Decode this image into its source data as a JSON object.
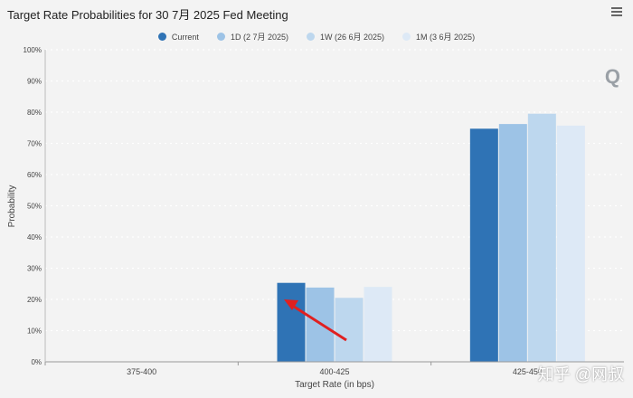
{
  "chart_data": {
    "type": "bar",
    "title": "Target Rate Probabilities for 30 7月 2025 Fed Meeting",
    "xlabel": "Target Rate (in bps)",
    "ylabel": "Probability",
    "categories": [
      "375-400",
      "400-425",
      "425-450"
    ],
    "ylim": [
      0,
      100
    ],
    "yticks": [
      "0%",
      "10%",
      "20%",
      "30%",
      "40%",
      "50%",
      "60%",
      "70%",
      "80%",
      "90%",
      "100%"
    ],
    "legend_position": "top-center",
    "grid": true,
    "series": [
      {
        "name": "Current",
        "color": "#2f73b5",
        "values": [
          0,
          25.3,
          74.7
        ]
      },
      {
        "name": "1D (2 7月 2025)",
        "color": "#9dc3e6",
        "values": [
          0,
          23.8,
          76.2
        ]
      },
      {
        "name": "1W (26 6月 2025)",
        "color": "#bdd7ee",
        "values": [
          0,
          20.5,
          79.5
        ]
      },
      {
        "name": "1M (3 6月 2025)",
        "color": "#dde9f6",
        "values": [
          0,
          24.0,
          75.7
        ]
      }
    ]
  },
  "watermark": {
    "q_logo": "Q",
    "text": "知乎 @网叔"
  }
}
